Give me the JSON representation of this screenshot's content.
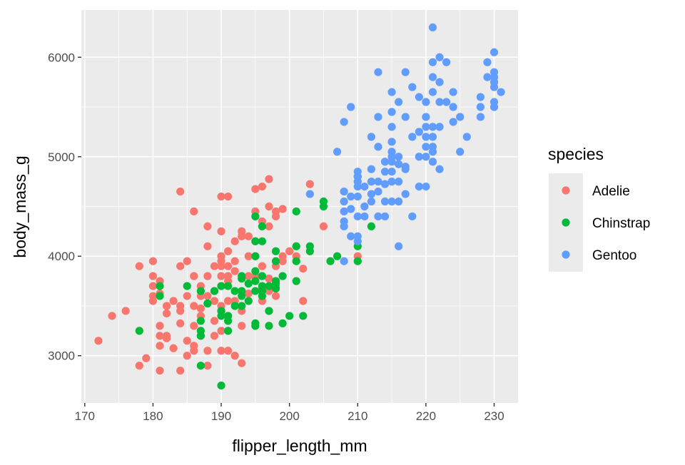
{
  "chart_data": {
    "type": "scatter",
    "title": "",
    "xlabel": "flipper_length_mm",
    "ylabel": "body_mass_g",
    "xlim": [
      169.5,
      233.5
    ],
    "ylim": [
      2525,
      6475
    ],
    "x_ticks": [
      170,
      180,
      190,
      200,
      210,
      220,
      230
    ],
    "y_ticks": [
      3000,
      4000,
      5000,
      6000
    ],
    "grid": true,
    "panel_background": "#ebebeb",
    "legend": {
      "title": "species",
      "position": "right"
    },
    "series": [
      {
        "name": "Adelie",
        "color": "#F8766D",
        "points": [
          [
            172,
            3150
          ],
          [
            174,
            3400
          ],
          [
            176,
            3450
          ],
          [
            178,
            3900
          ],
          [
            178,
            2900
          ],
          [
            179,
            2975
          ],
          [
            180,
            3950
          ],
          [
            180,
            3800
          ],
          [
            180,
            3700
          ],
          [
            180,
            3600
          ],
          [
            180,
            3550
          ],
          [
            181,
            2850
          ],
          [
            181,
            3300
          ],
          [
            181,
            3200
          ],
          [
            181,
            3100
          ],
          [
            181,
            3625
          ],
          [
            181,
            3750
          ],
          [
            182,
            3175
          ],
          [
            182,
            3200
          ],
          [
            182,
            3425
          ],
          [
            182,
            3500
          ],
          [
            183,
            3075
          ],
          [
            183,
            3550
          ],
          [
            184,
            4650
          ],
          [
            184,
            3900
          ],
          [
            184,
            3500
          ],
          [
            184,
            3325
          ],
          [
            184,
            2850
          ],
          [
            184,
            3450
          ],
          [
            185,
            3150
          ],
          [
            185,
            3000
          ],
          [
            185,
            3950
          ],
          [
            185,
            3600
          ],
          [
            186,
            4450
          ],
          [
            186,
            3800
          ],
          [
            186,
            3500
          ],
          [
            186,
            3100
          ],
          [
            186,
            3050
          ],
          [
            186,
            3300
          ],
          [
            187,
            3700
          ],
          [
            187,
            3600
          ],
          [
            187,
            3400
          ],
          [
            187,
            3200
          ],
          [
            187,
            3475
          ],
          [
            188,
            4300
          ],
          [
            188,
            4100
          ],
          [
            188,
            3800
          ],
          [
            188,
            3600
          ],
          [
            188,
            3525
          ],
          [
            188,
            3050
          ],
          [
            188,
            2900
          ],
          [
            189,
            3350
          ],
          [
            189,
            3200
          ],
          [
            189,
            3900
          ],
          [
            189,
            3650
          ],
          [
            189,
            3550
          ],
          [
            190,
            4250
          ],
          [
            190,
            4000
          ],
          [
            190,
            3950
          ],
          [
            190,
            3900
          ],
          [
            190,
            3800
          ],
          [
            190,
            3700
          ],
          [
            190,
            3500
          ],
          [
            190,
            3450
          ],
          [
            190,
            3250
          ],
          [
            190,
            3050
          ],
          [
            190,
            4600
          ],
          [
            191,
            4600
          ],
          [
            191,
            4050
          ],
          [
            191,
            3800
          ],
          [
            191,
            3550
          ],
          [
            191,
            3400
          ],
          [
            191,
            3050
          ],
          [
            191,
            3900
          ],
          [
            191,
            3750
          ],
          [
            192,
            3950
          ],
          [
            192,
            3850
          ],
          [
            192,
            3550
          ],
          [
            192,
            3000
          ],
          [
            192,
            4150
          ],
          [
            193,
            4250
          ],
          [
            193,
            4200
          ],
          [
            193,
            3450
          ],
          [
            193,
            3300
          ],
          [
            193,
            2925
          ],
          [
            194,
            4200
          ],
          [
            194,
            4000
          ],
          [
            194,
            3800
          ],
          [
            194,
            3625
          ],
          [
            195,
            4675
          ],
          [
            195,
            4150
          ],
          [
            195,
            4000
          ],
          [
            195,
            3800
          ],
          [
            195,
            3300
          ],
          [
            195,
            4450
          ],
          [
            196,
            4700
          ],
          [
            196,
            4350
          ],
          [
            196,
            3900
          ],
          [
            196,
            3675
          ],
          [
            196,
            3550
          ],
          [
            197,
            4775
          ],
          [
            197,
            4500
          ],
          [
            197,
            4300
          ],
          [
            197,
            3775
          ],
          [
            197,
            3650
          ],
          [
            197,
            3450
          ],
          [
            198,
            4400
          ],
          [
            198,
            3900
          ],
          [
            198,
            3700
          ],
          [
            198,
            3600
          ],
          [
            198,
            4450
          ],
          [
            199,
            4475
          ],
          [
            199,
            4000
          ],
          [
            199,
            3950
          ],
          [
            200,
            4050
          ],
          [
            201,
            4000
          ],
          [
            201,
            4100
          ],
          [
            202,
            3875
          ],
          [
            202,
            3550
          ],
          [
            203,
            4725
          ],
          [
            205,
            4300
          ],
          [
            210,
            4000
          ]
        ]
      },
      {
        "name": "Chinstrap",
        "color": "#00BA38",
        "points": [
          [
            178,
            3250
          ],
          [
            181,
            3700
          ],
          [
            181,
            3600
          ],
          [
            185,
            3700
          ],
          [
            187,
            2900
          ],
          [
            187,
            3650
          ],
          [
            187,
            3350
          ],
          [
            187,
            3250
          ],
          [
            187,
            3200
          ],
          [
            188,
            3525
          ],
          [
            189,
            3650
          ],
          [
            190,
            3700
          ],
          [
            190,
            3450
          ],
          [
            190,
            3400
          ],
          [
            191,
            3250
          ],
          [
            191,
            3350
          ],
          [
            191,
            3400
          ],
          [
            191,
            3700
          ],
          [
            192,
            3650
          ],
          [
            192,
            3500
          ],
          [
            193,
            3800
          ],
          [
            193,
            3775
          ],
          [
            193,
            3650
          ],
          [
            193,
            3500
          ],
          [
            194,
            3725
          ],
          [
            194,
            3550
          ],
          [
            195,
            4400
          ],
          [
            195,
            4150
          ],
          [
            195,
            3850
          ],
          [
            195,
            3750
          ],
          [
            195,
            3650
          ],
          [
            195,
            3325
          ],
          [
            195,
            3300
          ],
          [
            196,
            4300
          ],
          [
            196,
            4150
          ],
          [
            196,
            3800
          ],
          [
            196,
            3700
          ],
          [
            196,
            3600
          ],
          [
            196,
            3650
          ],
          [
            197,
            3700
          ],
          [
            197,
            3450
          ],
          [
            197,
            3300
          ],
          [
            198,
            4050
          ],
          [
            198,
            3950
          ],
          [
            198,
            3750
          ],
          [
            198,
            3675
          ],
          [
            198,
            3725
          ],
          [
            199,
            3800
          ],
          [
            199,
            3325
          ],
          [
            200,
            3400
          ],
          [
            201,
            4100
          ],
          [
            201,
            3950
          ],
          [
            201,
            3750
          ],
          [
            201,
            4450
          ],
          [
            202,
            3400
          ],
          [
            203,
            4050
          ],
          [
            203,
            4100
          ],
          [
            205,
            4550
          ],
          [
            205,
            4500
          ],
          [
            206,
            3950
          ],
          [
            207,
            4000
          ],
          [
            210,
            4800
          ],
          [
            210,
            4100
          ],
          [
            210,
            3950
          ],
          [
            212,
            4300
          ],
          [
            190,
            2700
          ],
          [
            193,
            3600
          ],
          [
            195,
            4000
          ]
        ]
      },
      {
        "name": "Gentoo",
        "color": "#619CFF",
        "points": [
          [
            203,
            4625
          ],
          [
            207,
            5050
          ],
          [
            208,
            4350
          ],
          [
            208,
            4650
          ],
          [
            208,
            4550
          ],
          [
            208,
            4450
          ],
          [
            208,
            4300
          ],
          [
            208,
            3950
          ],
          [
            208,
            5350
          ],
          [
            209,
            4200
          ],
          [
            209,
            4475
          ],
          [
            209,
            4600
          ],
          [
            209,
            5500
          ],
          [
            210,
            4150
          ],
          [
            210,
            4200
          ],
          [
            210,
            4600
          ],
          [
            210,
            4700
          ],
          [
            210,
            4750
          ],
          [
            210,
            4800
          ],
          [
            210,
            4850
          ],
          [
            210,
            4400
          ],
          [
            211,
            4700
          ],
          [
            211,
            4400
          ],
          [
            211,
            4500
          ],
          [
            212,
            4875
          ],
          [
            212,
            4750
          ],
          [
            212,
            4625
          ],
          [
            212,
            4550
          ],
          [
            212,
            5200
          ],
          [
            213,
            4650
          ],
          [
            213,
            4400
          ],
          [
            213,
            5850
          ],
          [
            213,
            5400
          ],
          [
            213,
            5100
          ],
          [
            213,
            4750
          ],
          [
            214,
            4850
          ],
          [
            214,
            4725
          ],
          [
            214,
            4550
          ],
          [
            214,
            4400
          ],
          [
            214,
            4950
          ],
          [
            215,
            5650
          ],
          [
            215,
            5450
          ],
          [
            215,
            5300
          ],
          [
            215,
            5050
          ],
          [
            215,
            5000
          ],
          [
            215,
            4950
          ],
          [
            215,
            4850
          ],
          [
            215,
            4750
          ],
          [
            215,
            4550
          ],
          [
            215,
            5150
          ],
          [
            216,
            5550
          ],
          [
            216,
            5000
          ],
          [
            216,
            4925
          ],
          [
            216,
            4750
          ],
          [
            216,
            4100
          ],
          [
            216,
            4550
          ],
          [
            217,
            5850
          ],
          [
            217,
            5400
          ],
          [
            217,
            4900
          ],
          [
            217,
            4875
          ],
          [
            217,
            4625
          ],
          [
            218,
            5700
          ],
          [
            218,
            5200
          ],
          [
            218,
            4400
          ],
          [
            219,
            5600
          ],
          [
            219,
            5250
          ],
          [
            219,
            5000
          ],
          [
            219,
            4700
          ],
          [
            220,
            5400
          ],
          [
            220,
            5300
          ],
          [
            220,
            5200
          ],
          [
            220,
            5100
          ],
          [
            220,
            5000
          ],
          [
            220,
            4700
          ],
          [
            220,
            5550
          ],
          [
            221,
            6300
          ],
          [
            221,
            5950
          ],
          [
            221,
            5800
          ],
          [
            221,
            5650
          ],
          [
            221,
            5300
          ],
          [
            221,
            5200
          ],
          [
            221,
            5100
          ],
          [
            221,
            5050
          ],
          [
            221,
            4950
          ],
          [
            222,
            6000
          ],
          [
            222,
            5750
          ],
          [
            222,
            5550
          ],
          [
            222,
            5300
          ],
          [
            222,
            4875
          ],
          [
            223,
            5950
          ],
          [
            223,
            5550
          ],
          [
            224,
            5650
          ],
          [
            224,
            5500
          ],
          [
            224,
            5350
          ],
          [
            225,
            5400
          ],
          [
            225,
            5050
          ],
          [
            226,
            5200
          ],
          [
            228,
            5600
          ],
          [
            228,
            5500
          ],
          [
            228,
            5400
          ],
          [
            229,
            5950
          ],
          [
            229,
            5800
          ],
          [
            230,
            6050
          ],
          [
            230,
            5850
          ],
          [
            230,
            5800
          ],
          [
            230,
            5750
          ],
          [
            230,
            5700
          ],
          [
            230,
            5550
          ],
          [
            230,
            5500
          ],
          [
            231,
            5650
          ]
        ]
      }
    ]
  }
}
